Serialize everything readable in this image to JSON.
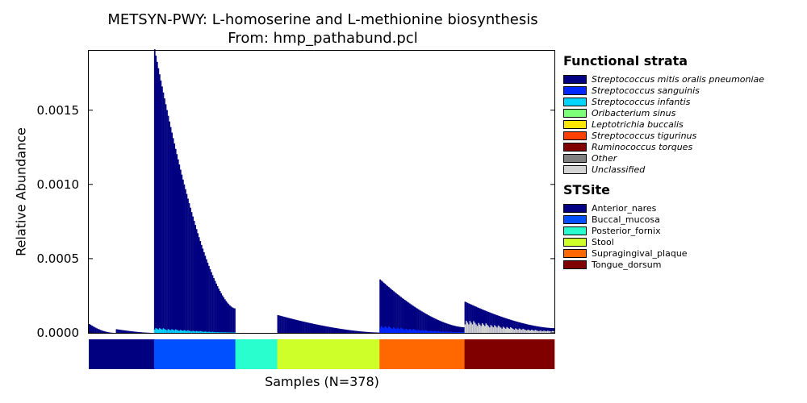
{
  "chart_data": {
    "type": "bar",
    "title": "METSYN-PWY: L-homoserine and L-methionine biosynthesis",
    "subtitle": "From: hmp_pathabund.pcl",
    "xlabel": "Samples (N=378)",
    "ylabel": "Relative Abundance",
    "ylim": [
      0,
      0.0019
    ],
    "yticks": [
      "0.0000",
      "0.0005",
      "0.0010",
      "0.0015"
    ],
    "ytick_values": [
      0,
      0.0005,
      0.001,
      0.0015
    ],
    "legend_placement": "right",
    "strata_legend_title": "Functional strata",
    "strata": [
      {
        "name": "Streptococcus mitis oralis pneumoniae",
        "color": "#000080"
      },
      {
        "name": "Streptococcus sanguinis",
        "color": "#0028ff"
      },
      {
        "name": "Streptococcus infantis",
        "color": "#00d4ff"
      },
      {
        "name": "Oribacterium sinus",
        "color": "#7dff7a"
      },
      {
        "name": "Leptotrichia buccalis",
        "color": "#ffe600"
      },
      {
        "name": "Streptococcus tigurinus",
        "color": "#ff4000"
      },
      {
        "name": "Ruminococcus torques",
        "color": "#800000"
      },
      {
        "name": "Other",
        "color": "#808080"
      },
      {
        "name": "Unclassified",
        "color": "#d3d3d3"
      }
    ],
    "site_legend_title": "STSite",
    "sites": [
      {
        "name": "Anterior_nares",
        "color": "#000080",
        "samples": 53,
        "peak": 6e-05,
        "tail": 0.0,
        "base_color": "#000080",
        "base_frac": 0.0
      },
      {
        "name": "Buccal_mucosa",
        "color": "#0050ff",
        "samples": 66,
        "peak": 0.00191,
        "tail": 0.000165,
        "base_color": "#00d4ff",
        "base_frac": 0.02
      },
      {
        "name": "Posterior_fornix",
        "color": "#29ffce",
        "samples": 34,
        "peak": 0.0,
        "tail": 0.0,
        "base_color": "#d3d3d3",
        "base_frac": 0.0
      },
      {
        "name": "Stool",
        "color": "#ceff29",
        "samples": 83,
        "peak": 0.00012,
        "tail": 2.5e-06,
        "base_color": "#d3d3d3",
        "base_frac": 0.0
      },
      {
        "name": "Supragingival_plaque",
        "color": "#ff6800",
        "samples": 69,
        "peak": 0.00036,
        "tail": 3.8e-05,
        "base_color": "#0028ff",
        "base_frac": 0.15
      },
      {
        "name": "Tongue_dorsum",
        "color": "#800000",
        "samples": 73,
        "peak": 0.00021,
        "tail": 3.2e-05,
        "base_color": "#d3d3d3",
        "base_frac": 0.45
      }
    ]
  }
}
